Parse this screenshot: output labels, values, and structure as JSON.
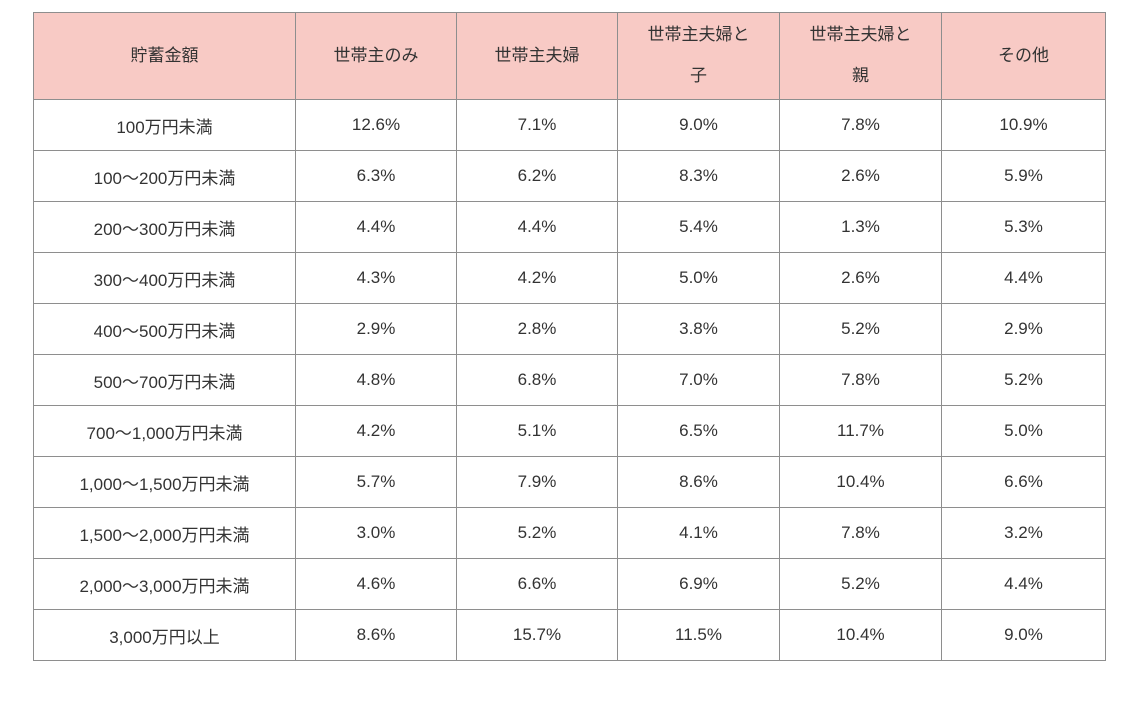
{
  "page": {
    "background_color": "#ffffff"
  },
  "table_style": {
    "header_background_color": "#f8cac5",
    "border_color": "#8e8e8e",
    "text_color": "#333333"
  },
  "chart_data": {
    "type": "table",
    "title": "",
    "value_unit": "%",
    "value_format": "one-decimal",
    "columns": [
      "貯蓄金額",
      "世帯主のみ",
      "世帯主夫婦",
      "世帯主夫婦と\n子",
      "世帯主夫婦と\n親",
      "その他"
    ],
    "rows": [
      {
        "label": "100万円未満",
        "values": [
          12.6,
          7.1,
          9.0,
          7.8,
          10.9
        ]
      },
      {
        "label": "100〜200万円未満",
        "values": [
          6.3,
          6.2,
          8.3,
          2.6,
          5.9
        ]
      },
      {
        "label": "200〜300万円未満",
        "values": [
          4.4,
          4.4,
          5.4,
          1.3,
          5.3
        ]
      },
      {
        "label": "300〜400万円未満",
        "values": [
          4.3,
          4.2,
          5.0,
          2.6,
          4.4
        ]
      },
      {
        "label": "400〜500万円未満",
        "values": [
          2.9,
          2.8,
          3.8,
          5.2,
          2.9
        ]
      },
      {
        "label": "500〜700万円未満",
        "values": [
          4.8,
          6.8,
          7.0,
          7.8,
          5.2
        ]
      },
      {
        "label": "700〜1,000万円未満",
        "values": [
          4.2,
          5.1,
          6.5,
          11.7,
          5.0
        ]
      },
      {
        "label": "1,000〜1,500万円未満",
        "values": [
          5.7,
          7.9,
          8.6,
          10.4,
          6.6
        ]
      },
      {
        "label": "1,500〜2,000万円未満",
        "values": [
          3.0,
          5.2,
          4.1,
          7.8,
          3.2
        ]
      },
      {
        "label": "2,000〜3,000万円未満",
        "values": [
          4.6,
          6.6,
          6.9,
          5.2,
          4.4
        ]
      },
      {
        "label": "3,000万円以上",
        "values": [
          8.6,
          15.7,
          11.5,
          10.4,
          9.0
        ]
      }
    ]
  }
}
